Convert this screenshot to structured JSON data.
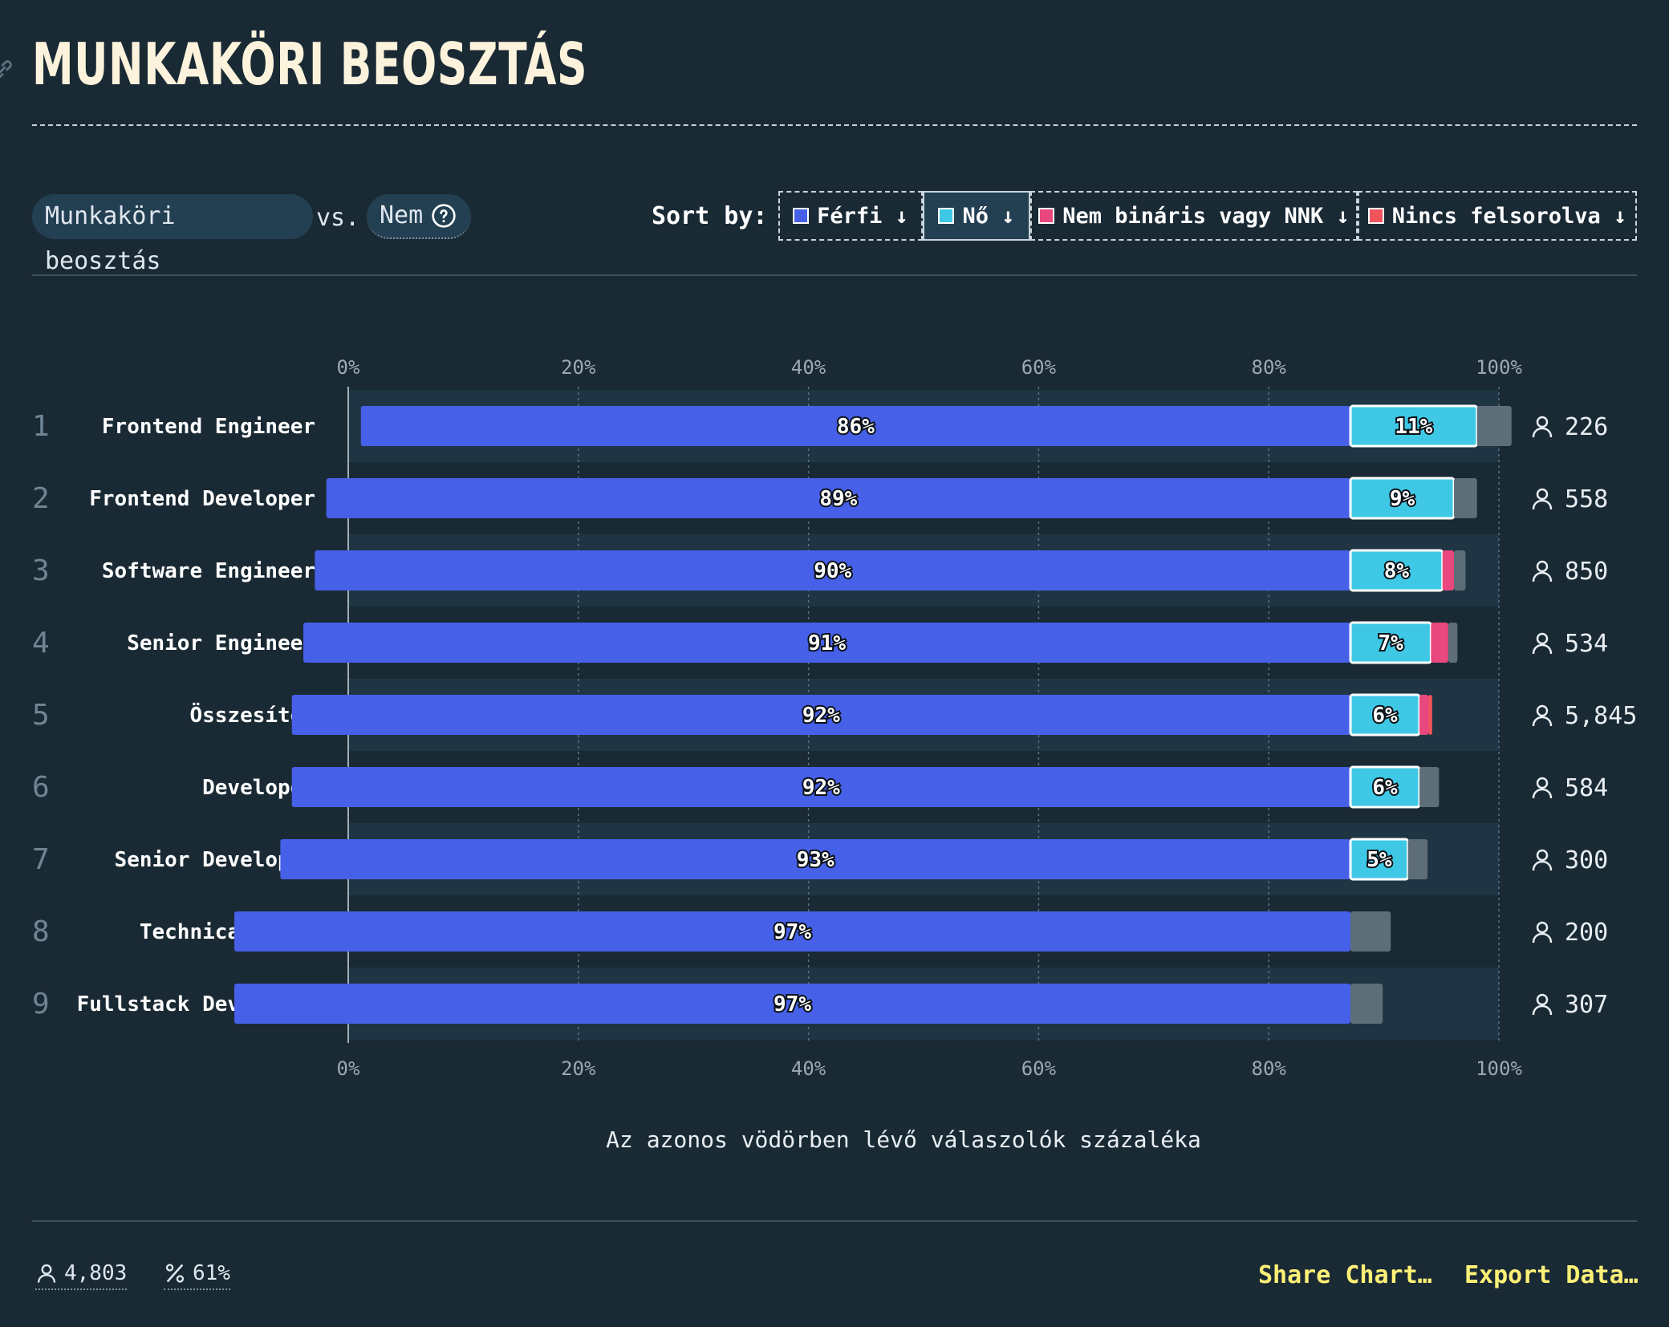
{
  "title": "MUNKAKÖRI BEOSZTÁS",
  "controls": {
    "x_variable": "Munkaköri beosztás",
    "vs": "vs.",
    "y_variable": "Nem",
    "sort_label": "Sort by:",
    "sort_options": [
      {
        "label": "Férfi ↓",
        "color": "#4660e8",
        "active": false
      },
      {
        "label": "Nő ↓",
        "color": "#3fc8e6",
        "active": true
      },
      {
        "label": "Nem bináris vagy NNK ↓",
        "color": "#e8487e",
        "active": false
      },
      {
        "label": "Nincs felsorolva ↓",
        "color": "#f2545b",
        "active": false
      }
    ]
  },
  "chart_data": {
    "type": "bar",
    "stacked": true,
    "orientation": "horizontal",
    "xlim": [
      0,
      100
    ],
    "x_ticks": [
      "0%",
      "20%",
      "40%",
      "60%",
      "80%",
      "100%"
    ],
    "xlabel": "Az azonos vödörben lévő válaszolók százaléka",
    "grid": true,
    "series_colors": {
      "Férfi": "#4660e8",
      "Nő": "#3fc8e6",
      "Nem bináris vagy NNK": "#e8487e",
      "Nincs felsorolva": "#f2545b",
      "other": "#5e6e79"
    },
    "rows": [
      {
        "rank": "1",
        "label": "Frontend Engineer",
        "count": "226",
        "values": {
          "Férfi": 86,
          "Nő": 11,
          "Nem bináris vagy NNK": 0,
          "Nincs felsorolva": 0,
          "other": 3
        },
        "bar_labels": {
          "Férfi": "86%",
          "Nő": "11%"
        }
      },
      {
        "rank": "2",
        "label": "Frontend Developer",
        "count": "558",
        "values": {
          "Férfi": 89,
          "Nő": 9,
          "Nem bináris vagy NNK": 0,
          "Nincs felsorolva": 0,
          "other": 2
        },
        "bar_labels": {
          "Férfi": "89%",
          "Nő": "9%"
        }
      },
      {
        "rank": "3",
        "label": "Software Engineer",
        "count": "850",
        "values": {
          "Férfi": 90,
          "Nő": 8,
          "Nem bináris vagy NNK": 1,
          "Nincs felsorolva": 0,
          "other": 1
        },
        "bar_labels": {
          "Férfi": "90%",
          "Nő": "8%"
        }
      },
      {
        "rank": "4",
        "label": "Senior Engineer",
        "count": "534",
        "values": {
          "Férfi": 91,
          "Nő": 7,
          "Nem bináris vagy NNK": 1.5,
          "Nincs felsorolva": 0,
          "other": 0.8
        },
        "bar_labels": {
          "Férfi": "91%",
          "Nő": "7%"
        }
      },
      {
        "rank": "5",
        "label": "Összesítés",
        "count": "5,845",
        "values": {
          "Férfi": 92,
          "Nő": 6,
          "Nem bináris vagy NNK": 0.8,
          "Nincs felsorolva": 0.3,
          "other": 0
        },
        "bar_labels": {
          "Férfi": "92%",
          "Nő": "6%"
        }
      },
      {
        "rank": "6",
        "label": "Developer",
        "count": "584",
        "values": {
          "Férfi": 92,
          "Nő": 6,
          "Nem bináris vagy NNK": 0,
          "Nincs felsorolva": 0,
          "other": 1.7
        },
        "bar_labels": {
          "Férfi": "92%",
          "Nő": "6%"
        }
      },
      {
        "rank": "7",
        "label": "Senior Developer",
        "count": "300",
        "values": {
          "Férfi": 93,
          "Nő": 5,
          "Nem bináris vagy NNK": 0,
          "Nincs felsorolva": 0,
          "other": 1.7
        },
        "bar_labels": {
          "Férfi": "93%",
          "Nő": "5%"
        }
      },
      {
        "rank": "8",
        "label": "Technical Lead",
        "count": "200",
        "values": {
          "Férfi": 97,
          "Nő": 0,
          "Nem bináris vagy NNK": 0,
          "Nincs felsorolva": 0,
          "other": 3.5
        },
        "bar_labels": {
          "Férfi": "97%"
        }
      },
      {
        "rank": "9",
        "label": "Fullstack Developer",
        "count": "307",
        "values": {
          "Férfi": 97,
          "Nő": 0,
          "Nem bináris vagy NNK": 0,
          "Nincs felsorolva": 0,
          "other": 2.8
        },
        "bar_labels": {
          "Férfi": "97%"
        }
      }
    ]
  },
  "footer": {
    "respondents": "4,803",
    "percentage": "61%",
    "share_label": "Share Chart…",
    "export_label": "Export Data…"
  }
}
